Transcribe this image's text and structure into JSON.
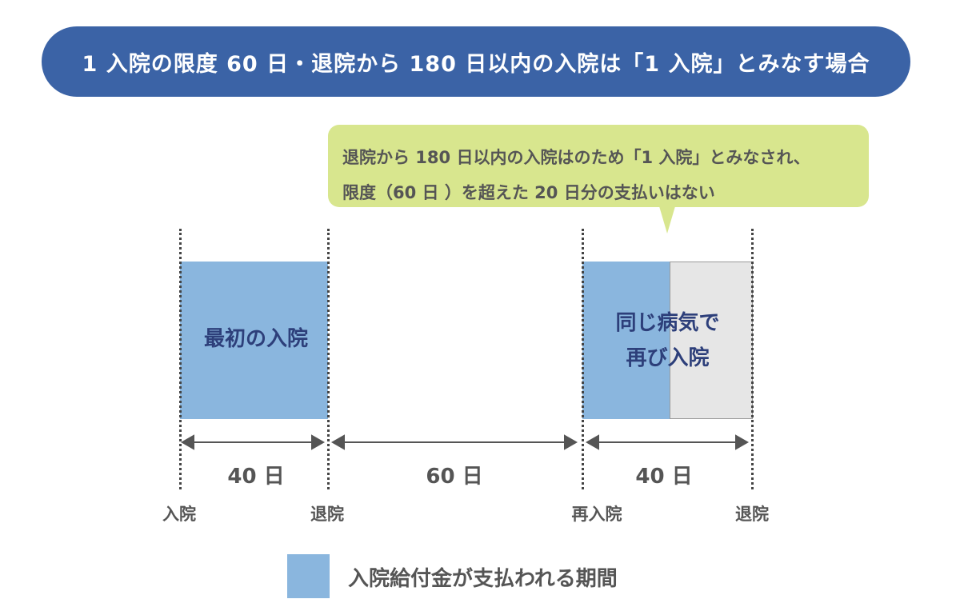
{
  "title": "1 入院の限度 60 日・退院から 180 日以内の入院は「1 入院」とみなす場合",
  "callout": {
    "line1": "退院から 180 日以内の入院はのため「1 入院」とみなされ、",
    "line2": "限度（60 日 ）を超えた 20 日分の支払いはない"
  },
  "blocks": {
    "first": "最初の入院",
    "second_line1": "同じ病気で",
    "second_line2": "再び入院"
  },
  "spans": [
    "40 日",
    "60 日",
    "40 日"
  ],
  "events": [
    "入院",
    "退院",
    "再入院",
    "退院"
  ],
  "legend": {
    "label": "入院給付金が支払われる期間"
  },
  "colors": {
    "banner": "#3b63a6",
    "callout": "#d8e68e",
    "paid_period": "#8ab6de",
    "unpaid_period": "#e6e6e6"
  }
}
